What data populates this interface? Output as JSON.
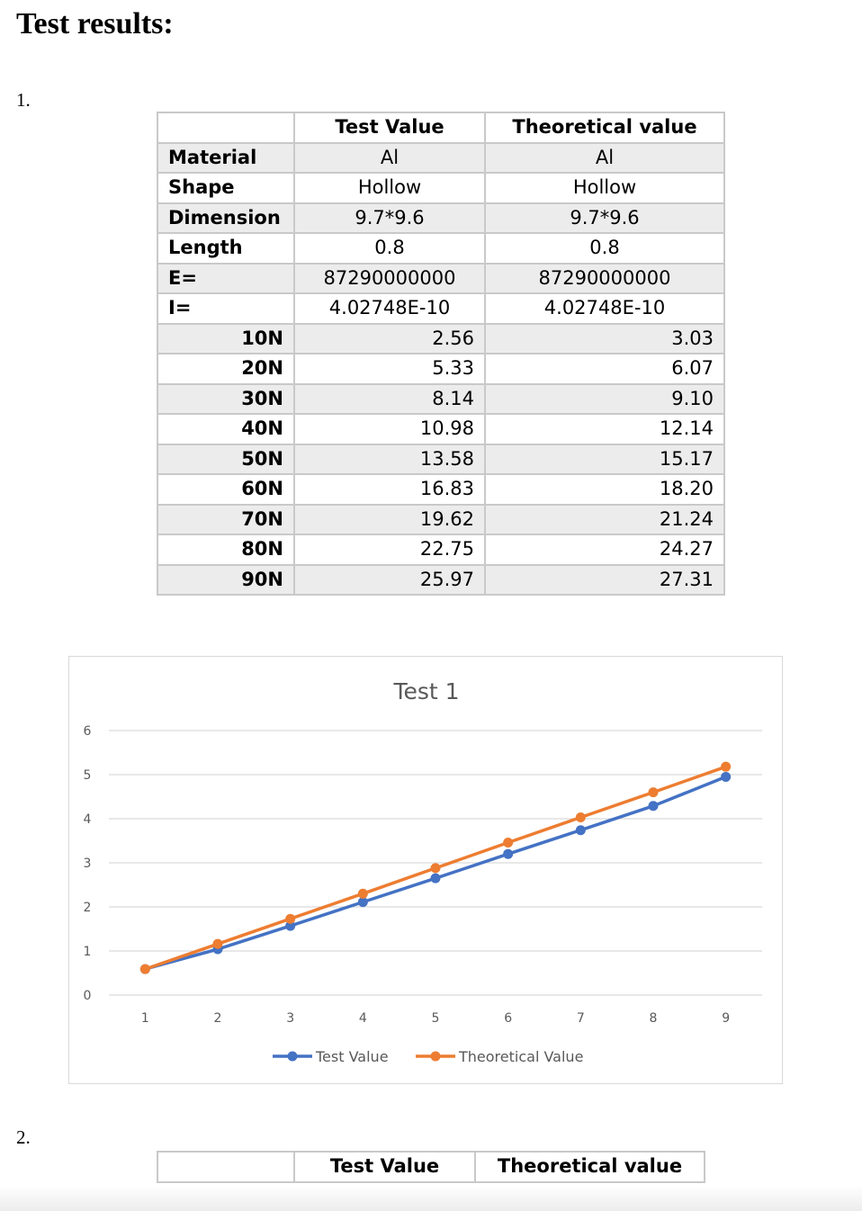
{
  "heading": "Test results:",
  "item1": "1.",
  "item2": "2.",
  "table1": {
    "header": [
      "",
      "Test Value",
      "Theoretical value"
    ],
    "rows": [
      [
        "Material",
        "Al",
        "Al"
      ],
      [
        "Shape",
        "Hollow",
        "Hollow"
      ],
      [
        "Dimension",
        "9.7*9.6",
        "9.7*9.6"
      ],
      [
        "Length",
        "0.8",
        "0.8"
      ],
      [
        "E=",
        "87290000000",
        "87290000000"
      ],
      [
        "I=",
        "4.02748E-10",
        "4.02748E-10"
      ]
    ],
    "force_rows": [
      [
        "10N",
        "2.56",
        "3.03"
      ],
      [
        "20N",
        "5.33",
        "6.07"
      ],
      [
        "30N",
        "8.14",
        "9.10"
      ],
      [
        "40N",
        "10.98",
        "12.14"
      ],
      [
        "50N",
        "13.58",
        "15.17"
      ],
      [
        "60N",
        "16.83",
        "18.20"
      ],
      [
        "70N",
        "19.62",
        "21.24"
      ],
      [
        "80N",
        "22.75",
        "24.27"
      ],
      [
        "90N",
        "25.97",
        "27.31"
      ]
    ]
  },
  "table2": {
    "header": [
      "",
      "Test Value",
      "Theoretical value"
    ]
  },
  "chart_data": {
    "type": "line",
    "title": "Test 1",
    "xlabel": "",
    "ylabel": "",
    "categories": [
      "1",
      "2",
      "3",
      "4",
      "5",
      "6",
      "7",
      "8",
      "9"
    ],
    "ylim": [
      0,
      6
    ],
    "yticks": [
      "0",
      "1",
      "2",
      "3",
      "4",
      "5",
      "6"
    ],
    "grid": true,
    "legend_position": "bottom",
    "series": [
      {
        "name": "Test Value",
        "color": "#4472c4",
        "values": [
          0.59,
          1.04,
          1.57,
          2.11,
          2.65,
          3.2,
          3.74,
          4.29,
          4.95
        ]
      },
      {
        "name": "Theoretical Value",
        "color": "#ed7d31",
        "values": [
          0.59,
          1.16,
          1.73,
          2.3,
          2.88,
          3.46,
          4.03,
          4.6,
          5.18
        ]
      }
    ]
  }
}
